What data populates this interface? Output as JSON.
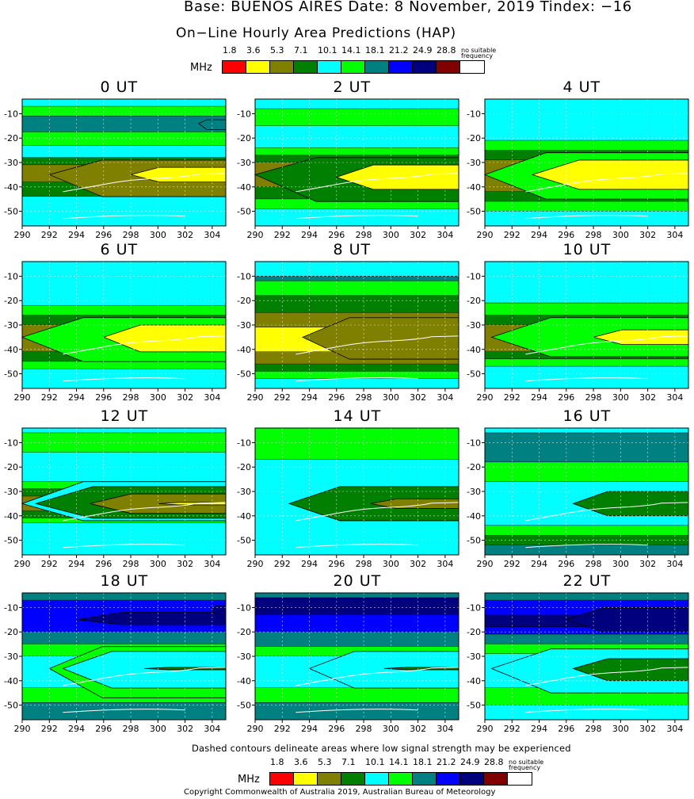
{
  "header": {
    "base_line": "Base: BUENOS AIRES Date: 8 November, 2019 Tindex: −16",
    "subtitle": "On−Line Hourly Area Predictions (HAP)"
  },
  "legend": {
    "unit": "MHz",
    "labels": [
      "1.8",
      "3.6",
      "5.3",
      "7.1",
      "10.1",
      "14.1",
      "18.1",
      "21.2",
      "24.9",
      "28.8"
    ],
    "no_suitable": "no suitable",
    "frequency": "frequency",
    "colors": [
      "#ff0000",
      "#ffff00",
      "#808000",
      "#007f00",
      "#00ffff",
      "#00ff00",
      "#008080",
      "#0000ff",
      "#00007f",
      "#800000",
      "#ffffff"
    ]
  },
  "footnote": "Dashed contours delineate areas where low signal strength may be experienced",
  "copyright": "Copyright Commonwealth of Australia 2019, Australian Bureau of Meteorology",
  "chart_data": {
    "type": "heatmap",
    "x_ticks": [
      "290",
      "292",
      "294",
      "296",
      "298",
      "300",
      "302",
      "304"
    ],
    "y_ticks": [
      "-10",
      "-20",
      "-30",
      "-40",
      "-50"
    ],
    "xlim": [
      290,
      305
    ],
    "ylim": [
      -56,
      -4
    ],
    "grid": "dotted",
    "panels": [
      {
        "title": "0 UT",
        "bands": [
          [
            "#00ffff",
            -4,
            -7
          ],
          [
            "#00ff00",
            -7,
            -11
          ],
          [
            "#008080",
            -11,
            -17.5
          ],
          [
            "#00ff00",
            -17.5,
            -23
          ],
          [
            "#00ffff",
            -23,
            -28
          ],
          [
            "#007f00",
            -28,
            -31
          ],
          [
            "#808000",
            -31,
            -38
          ],
          [
            "#007f00",
            -38,
            -44
          ],
          [
            "#00ffff",
            -44,
            -56
          ]
        ],
        "wedges": [
          [
            "#008080",
            303,
            -12.5,
            -16.5,
            -14
          ],
          [
            "#808000",
            292,
            -29,
            -44,
            -35
          ]
        ],
        "cores": [
          [
            "#ffff00",
            298,
            -32,
            -38,
            -35
          ]
        ]
      },
      {
        "title": "2 UT",
        "bands": [
          [
            "#00ffff",
            -4,
            -8
          ],
          [
            "#00ff00",
            -8,
            -15
          ],
          [
            "#00ffff",
            -15,
            -24
          ],
          [
            "#00ff00",
            -24,
            -27
          ],
          [
            "#007f00",
            -27,
            -30
          ],
          [
            "#808000",
            -30,
            -40
          ],
          [
            "#007f00",
            -40,
            -45
          ],
          [
            "#00ff00",
            -45,
            -49
          ],
          [
            "#00ffff",
            -49,
            -56
          ]
        ],
        "wedges": [
          [
            "#007f00",
            290,
            -28,
            -46,
            -35
          ]
        ],
        "cores": [
          [
            "#ffff00",
            296,
            -31,
            -41,
            -36
          ]
        ]
      },
      {
        "title": "4 UT",
        "bands": [
          [
            "#00ffff",
            -4,
            -21
          ],
          [
            "#00ff00",
            -21,
            -25
          ],
          [
            "#007f00",
            -25,
            -29
          ],
          [
            "#808000",
            -29,
            -42
          ],
          [
            "#007f00",
            -42,
            -46
          ],
          [
            "#00ff00",
            -46,
            -50
          ],
          [
            "#00ffff",
            -50,
            -56
          ]
        ],
        "wedges": [
          [
            "#00ff00",
            290,
            -26,
            -45,
            -35
          ]
        ],
        "cores": [
          [
            "#ffff00",
            293.5,
            -29,
            -41,
            -35
          ]
        ]
      },
      {
        "title": "6 UT",
        "bands": [
          [
            "#00ffff",
            -4,
            -22
          ],
          [
            "#00ff00",
            -22,
            -26
          ],
          [
            "#007f00",
            -26,
            -30
          ],
          [
            "#808000",
            -30,
            -41
          ],
          [
            "#007f00",
            -41,
            -45
          ],
          [
            "#00ff00",
            -45,
            -48
          ],
          [
            "#00ffff",
            -48,
            -56
          ]
        ],
        "wedges": [
          [
            "#00ff00",
            290,
            -27,
            -45,
            -35
          ]
        ],
        "cores": [
          [
            "#ffff00",
            296,
            -30,
            -41,
            -35
          ]
        ]
      },
      {
        "title": "8 UT",
        "bands": [
          [
            "#00ffff",
            -4,
            -10
          ],
          [
            "#008080",
            -10,
            -12
          ],
          [
            "#00ff00",
            -12,
            -18
          ],
          [
            "#007f00",
            -18,
            -25
          ],
          [
            "#808000",
            -25,
            -31
          ],
          [
            "#ffff00",
            -31,
            -41
          ],
          [
            "#808000",
            -41,
            -46
          ],
          [
            "#007f00",
            -46,
            -49
          ],
          [
            "#00ff00",
            -49,
            -52
          ],
          [
            "#00ffff",
            -52,
            -56
          ]
        ],
        "wedges": [
          [
            "#808000",
            293.5,
            -27,
            -44,
            -35
          ]
        ],
        "cores": []
      },
      {
        "title": "10 UT",
        "bands": [
          [
            "#00ffff",
            -4,
            -21
          ],
          [
            "#00ff00",
            -21,
            -26
          ],
          [
            "#007f00",
            -26,
            -30
          ],
          [
            "#808000",
            -30,
            -41
          ],
          [
            "#007f00",
            -41,
            -44
          ],
          [
            "#00ff00",
            -44,
            -47
          ],
          [
            "#00ffff",
            -47,
            -56
          ]
        ],
        "wedges": [
          [
            "#00ff00",
            290.5,
            -27,
            -43,
            -35
          ]
        ],
        "cores": [
          [
            "#ffff00",
            298,
            -32,
            -38,
            -35
          ]
        ]
      },
      {
        "title": "12 UT",
        "bands": [
          [
            "#00ffff",
            -4,
            -6
          ],
          [
            "#00ff00",
            -6,
            -14
          ],
          [
            "#00ffff",
            -14,
            -26
          ],
          [
            "#00ff00",
            -26,
            -29
          ],
          [
            "#007f00",
            -29,
            -32
          ],
          [
            "#808000",
            -32,
            -38
          ],
          [
            "#007f00",
            -38,
            -41
          ],
          [
            "#00ff00",
            -41,
            -43
          ],
          [
            "#00ffff",
            -43,
            -56
          ]
        ],
        "wedges": [
          [
            "#00ffff",
            290,
            -26,
            -42,
            -35
          ],
          [
            "#007f00",
            291,
            -28,
            -41,
            -35
          ],
          [
            "#808000",
            295,
            -31,
            -39,
            -35
          ]
        ],
        "cores": [
          [
            "#ffff00",
            300,
            -34.5,
            -35.5,
            -35
          ]
        ]
      },
      {
        "title": "14 UT",
        "bands": [
          [
            "#00ff00",
            -4,
            -17
          ],
          [
            "#00ffff",
            -17,
            -56
          ]
        ],
        "wedges": [
          [
            "#007f00",
            292.5,
            -28,
            -42,
            -35
          ],
          [
            "#808000",
            298.5,
            -33,
            -37,
            -35
          ]
        ],
        "cores": []
      },
      {
        "title": "16 UT",
        "bands": [
          [
            "#00ffff",
            -4,
            -6
          ],
          [
            "#008080",
            -6,
            -18
          ],
          [
            "#00ff00",
            -18,
            -26
          ],
          [
            "#00ffff",
            -26,
            -44
          ],
          [
            "#00ff00",
            -44,
            -48
          ],
          [
            "#007f00",
            -48,
            -52
          ],
          [
            "#008080",
            -52,
            -56
          ]
        ],
        "wedges": [
          [
            "#007f00",
            296.5,
            -30,
            -40,
            -35
          ]
        ],
        "cores": []
      },
      {
        "title": "18 UT",
        "bands": [
          [
            "#008080",
            -4,
            -7
          ],
          [
            "#0000ff",
            -7,
            -20
          ],
          [
            "#008080",
            -20,
            -25
          ],
          [
            "#00ff00",
            -25,
            -30
          ],
          [
            "#00ffff",
            -30,
            -43
          ],
          [
            "#00ff00",
            -43,
            -49
          ],
          [
            "#008080",
            -49,
            -56
          ]
        ],
        "wedges": [
          [
            "#00ff00",
            292,
            -26,
            -47,
            -35
          ],
          [
            "#00ffff",
            293,
            -28,
            -43,
            -35
          ],
          [
            "#00007f",
            294,
            -12,
            -17,
            -15
          ],
          [
            "#00007f",
            304,
            -9,
            -13,
            -11
          ]
        ],
        "cores": [
          [
            "#007f00",
            299,
            -34.5,
            -35.5,
            -35
          ]
        ]
      },
      {
        "title": "20 UT",
        "bands": [
          [
            "#008080",
            -4,
            -6
          ],
          [
            "#00007f",
            -6,
            -13
          ],
          [
            "#0000ff",
            -13,
            -20
          ],
          [
            "#008080",
            -20,
            -26
          ],
          [
            "#00ff00",
            -26,
            -30
          ],
          [
            "#00ffff",
            -30,
            -43
          ],
          [
            "#00ff00",
            -43,
            -49
          ],
          [
            "#008080",
            -49,
            -56
          ]
        ],
        "wedges": [
          [
            "#00ffff",
            294,
            -28,
            -43,
            -35
          ]
        ],
        "cores": [
          [
            "#007f00",
            299.5,
            -34.5,
            -35.5,
            -35
          ]
        ]
      },
      {
        "title": "22 UT",
        "bands": [
          [
            "#008080",
            -4,
            -7
          ],
          [
            "#0000ff",
            -7,
            -13
          ],
          [
            "#00007f",
            -13,
            -18
          ],
          [
            "#0000ff",
            -18,
            -21
          ],
          [
            "#008080",
            -21,
            -25
          ],
          [
            "#00ff00",
            -25,
            -29
          ],
          [
            "#00ffff",
            -29,
            -43
          ],
          [
            "#00ff00",
            -43,
            -50
          ],
          [
            "#00ffff",
            -50,
            -56
          ]
        ],
        "wedges": [
          [
            "#00ffff",
            290.5,
            -27,
            -45,
            -35
          ],
          [
            "#00007f",
            296,
            -10,
            -20,
            -15
          ]
        ],
        "cores": [
          [
            "#007f00",
            296.5,
            -31,
            -40,
            -35
          ]
        ]
      }
    ]
  }
}
